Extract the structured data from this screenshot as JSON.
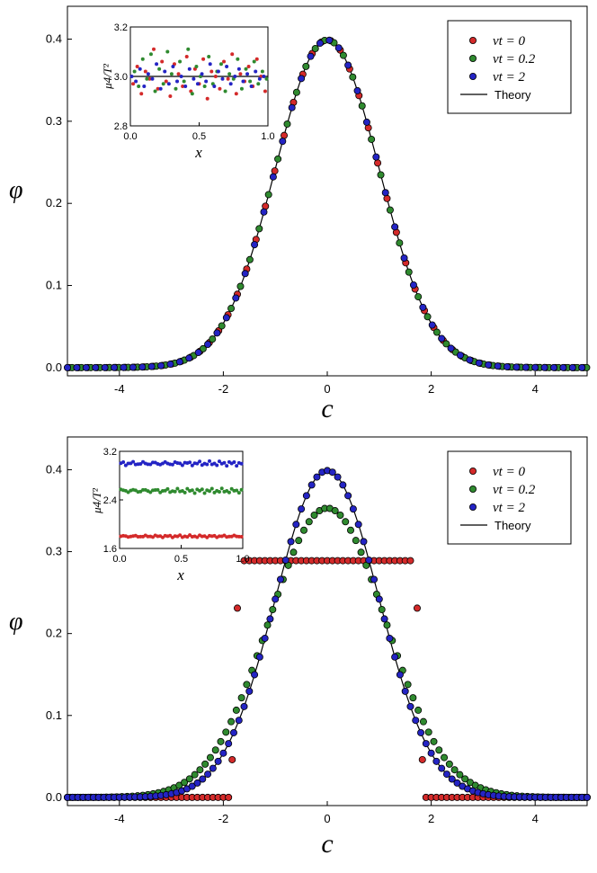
{
  "chart_data": [
    {
      "id": "top",
      "type": "scatter",
      "xlabel": "c",
      "ylabel": "φ",
      "xlim": [
        -5,
        5
      ],
      "ylim": [
        -0.01,
        0.44
      ],
      "xticks": [
        -4,
        -2,
        0,
        2,
        4
      ],
      "xtick_labels": [
        "-4",
        "-2",
        "0",
        "2",
        "4"
      ],
      "yticks": [
        0.0,
        0.1,
        0.2,
        0.3,
        0.4
      ],
      "ytick_labels": [
        "0.0",
        "0.1",
        "0.2",
        "0.3",
        "0.4"
      ],
      "series": [
        {
          "name": "νt = 0",
          "label_prefix": "νt",
          "label_value": "= 0",
          "color": "#d42a2a",
          "model": "gaussian",
          "sigma": 1.0,
          "step": 0.18,
          "offset": 0.03
        },
        {
          "name": "νt = 0.2",
          "label_prefix": "νt",
          "label_value": "= 0.2",
          "color": "#2f8a2f",
          "model": "gaussian",
          "sigma": 1.0,
          "step": 0.18,
          "offset": 0.09
        },
        {
          "name": "νt = 2",
          "label_prefix": "νt",
          "label_value": "= 2",
          "color": "#2424c4",
          "model": "gaussian",
          "sigma": 1.0,
          "step": 0.18,
          "offset": 0.0
        }
      ],
      "theory": {
        "name": "Theory",
        "model": "gaussian",
        "sigma": 1.0,
        "color": "#000000"
      },
      "legend": {
        "position": "top-right"
      },
      "inset": {
        "xlabel": "x",
        "ylabel": "μ4/T²",
        "xlim": [
          0,
          1
        ],
        "ylim": [
          2.8,
          3.2
        ],
        "xticks": [
          0,
          0.5,
          1.0
        ],
        "xtick_labels": [
          "0.0",
          "0.5",
          "1.0"
        ],
        "yticks": [
          2.8,
          3.0,
          3.2
        ],
        "ytick_labels": [
          "2.8",
          "3.0",
          "3.2"
        ],
        "theory_line": 3.0,
        "series": [
          {
            "name": "νt = 0",
            "color": "#d42a2a",
            "x": [
              0.02,
              0.05,
              0.08,
              0.11,
              0.14,
              0.17,
              0.2,
              0.23,
              0.26,
              0.29,
              0.32,
              0.35,
              0.38,
              0.41,
              0.44,
              0.47,
              0.5,
              0.53,
              0.56,
              0.59,
              0.62,
              0.65,
              0.68,
              0.71,
              0.74,
              0.77,
              0.8,
              0.83,
              0.86,
              0.89,
              0.92,
              0.95,
              0.98
            ],
            "y": [
              2.97,
              3.04,
              2.93,
              3.02,
              2.99,
              3.11,
              2.95,
              3.06,
              2.98,
              2.92,
              3.05,
              3.01,
              2.96,
              3.08,
              2.94,
              3.03,
              2.97,
              3.07,
              2.91,
              3.02,
              3.0,
              2.95,
              3.06,
              2.99,
              3.09,
              2.93,
              3.01,
              2.98,
              3.04,
              2.96,
              3.07,
              3.0,
              2.94
            ]
          },
          {
            "name": "νt = 0.2",
            "color": "#2f8a2f",
            "x": [
              0.03,
              0.06,
              0.09,
              0.12,
              0.15,
              0.18,
              0.21,
              0.24,
              0.27,
              0.3,
              0.33,
              0.36,
              0.39,
              0.42,
              0.45,
              0.48,
              0.51,
              0.54,
              0.57,
              0.6,
              0.63,
              0.66,
              0.69,
              0.72,
              0.75,
              0.78,
              0.81,
              0.84,
              0.87,
              0.9,
              0.93,
              0.96,
              0.99
            ],
            "y": [
              3.02,
              2.96,
              3.07,
              2.99,
              3.09,
              2.94,
              3.03,
              2.97,
              3.1,
              3.01,
              2.95,
              3.06,
              2.98,
              3.11,
              2.93,
              3.04,
              3.0,
              2.96,
              3.08,
              2.97,
              3.02,
              3.05,
              2.94,
              3.01,
              2.99,
              3.07,
              2.95,
              3.03,
              2.98,
              3.06,
              2.97,
              3.02,
              2.99
            ]
          },
          {
            "name": "νt = 2",
            "color": "#2424c4",
            "x": [
              0.01,
              0.04,
              0.07,
              0.1,
              0.13,
              0.16,
              0.19,
              0.22,
              0.25,
              0.28,
              0.31,
              0.34,
              0.37,
              0.4,
              0.43,
              0.46,
              0.49,
              0.52,
              0.55,
              0.58,
              0.61,
              0.64,
              0.67,
              0.7,
              0.73,
              0.76,
              0.79,
              0.82,
              0.85,
              0.88,
              0.91,
              0.94,
              0.97
            ],
            "y": [
              3.0,
              2.98,
              3.03,
              2.96,
              3.01,
              2.99,
              3.05,
              2.95,
              3.02,
              2.97,
              3.04,
              2.98,
              3.0,
              2.96,
              3.03,
              2.99,
              2.97,
              3.01,
              2.98,
              3.05,
              2.96,
              3.02,
              2.99,
              3.04,
              2.97,
              3.0,
              3.03,
              2.98,
              3.01,
              2.96,
              3.02,
              2.99,
              3.0
            ]
          }
        ]
      }
    },
    {
      "id": "bottom",
      "type": "scatter",
      "xlabel": "c",
      "ylabel": "φ",
      "xlim": [
        -5,
        5
      ],
      "ylim": [
        -0.01,
        0.44
      ],
      "xticks": [
        -4,
        -2,
        0,
        2,
        4
      ],
      "xtick_labels": [
        "-4",
        "-2",
        "0",
        "2",
        "4"
      ],
      "yticks": [
        0.0,
        0.1,
        0.2,
        0.3,
        0.4
      ],
      "ytick_labels": [
        "0.0",
        "0.1",
        "0.2",
        "0.3",
        "0.4"
      ],
      "series": [
        {
          "name": "νt = 0",
          "label_prefix": "νt",
          "label_value": "= 0",
          "color": "#d42a2a",
          "model": "uniform",
          "half_width": 1.73,
          "height": 0.289,
          "step": 0.1,
          "offset": 0.0,
          "edge_points": [
            [
              -1.73,
              0.231
            ],
            [
              -1.83,
              0.046
            ],
            [
              1.73,
              0.231
            ],
            [
              1.83,
              0.046
            ]
          ]
        },
        {
          "name": "νt = 0.2",
          "label_prefix": "νt",
          "label_value": "= 0.2",
          "color": "#2f8a2f",
          "model": "gaussian",
          "sigma": 1.13,
          "step": 0.1,
          "offset": 0.05
        },
        {
          "name": "νt = 2",
          "label_prefix": "νt",
          "label_value": "= 2",
          "color": "#2424c4",
          "model": "gaussian",
          "sigma": 1.0,
          "step": 0.1,
          "offset": 0.0
        }
      ],
      "theory": {
        "name": "Theory",
        "model": "gaussian",
        "sigma": 1.0,
        "color": "#000000"
      },
      "legend": {
        "position": "top-right"
      },
      "inset": {
        "xlabel": "x",
        "ylabel": "μ4/T²",
        "xlim": [
          0,
          1
        ],
        "ylim": [
          1.6,
          3.2
        ],
        "xticks": [
          0,
          0.5,
          1.0
        ],
        "xtick_labels": [
          "0.0",
          "0.5",
          "1.0"
        ],
        "yticks": [
          1.6,
          2.4,
          3.2
        ],
        "ytick_labels": [
          "1.6",
          "2.4",
          "3.2"
        ],
        "theory_line": null,
        "series": [
          {
            "name": "νt = 0",
            "color": "#d42a2a",
            "level": 1.8,
            "jitter": 0.02,
            "count": 50
          },
          {
            "name": "νt = 0.2",
            "color": "#2f8a2f",
            "level": 2.55,
            "jitter": 0.04,
            "count": 50
          },
          {
            "name": "νt = 2",
            "color": "#2424c4",
            "level": 3.0,
            "jitter": 0.04,
            "count": 50
          }
        ]
      }
    }
  ]
}
